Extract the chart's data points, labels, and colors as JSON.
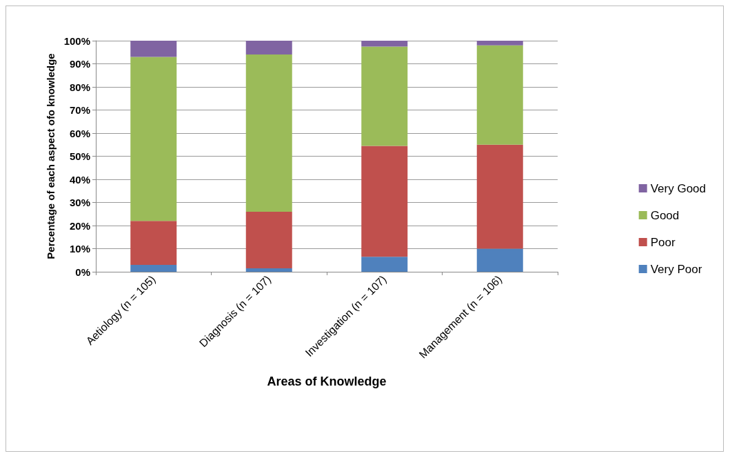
{
  "chart_data": {
    "type": "bar",
    "stacked": true,
    "xlabel": "Areas of Knowledge",
    "ylabel": "Percentage of each aspect ofo knowledge",
    "categories": [
      "Aetiology (n = 105)",
      "Diagnosis (n = 107)",
      "Investigation (n = 107)",
      "Management (n = 106)"
    ],
    "series": [
      {
        "name": "Very Poor",
        "color": "#4f81bd",
        "values": [
          3,
          1.5,
          6.5,
          10
        ]
      },
      {
        "name": "Poor",
        "color": "#c0504d",
        "values": [
          19,
          24.5,
          48,
          45
        ]
      },
      {
        "name": "Good",
        "color": "#9bbb59",
        "values": [
          71,
          68,
          43,
          43
        ]
      },
      {
        "name": "Very Good",
        "color": "#8064a2",
        "values": [
          7,
          6,
          2.5,
          2
        ]
      }
    ],
    "ylim": [
      0,
      100
    ],
    "yticks": [
      {
        "value": 0,
        "label": "0%"
      },
      {
        "value": 10,
        "label": "10%"
      },
      {
        "value": 20,
        "label": "20%"
      },
      {
        "value": 30,
        "label": "30%"
      },
      {
        "value": 40,
        "label": "40%"
      },
      {
        "value": 50,
        "label": "50%"
      },
      {
        "value": 60,
        "label": "60%"
      },
      {
        "value": 70,
        "label": "70%"
      },
      {
        "value": 80,
        "label": "80%"
      },
      {
        "value": 90,
        "label": "90%"
      },
      {
        "value": 100,
        "label": "100%"
      }
    ],
    "grid": "y",
    "legend": "right"
  }
}
